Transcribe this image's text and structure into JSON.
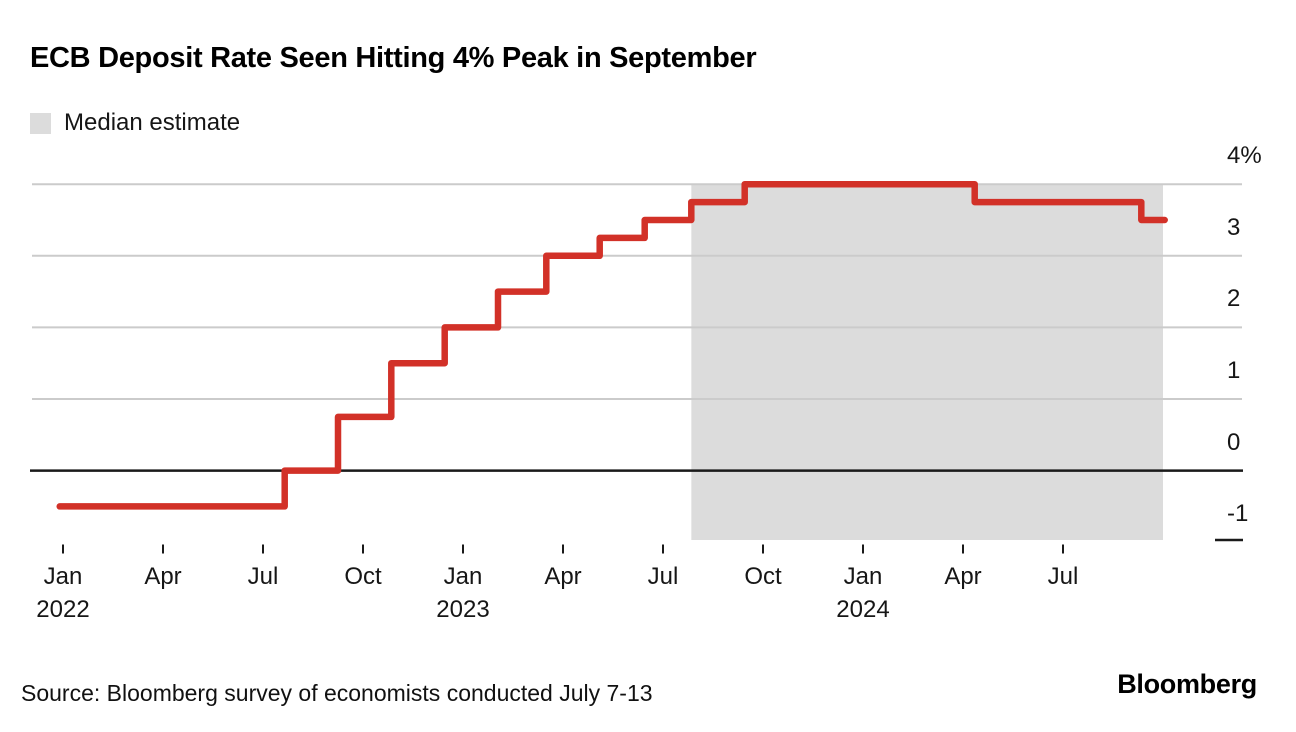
{
  "header": {
    "title": "ECB Deposit Rate Seen Hitting 4% Peak in September"
  },
  "legend": {
    "label": "Median estimate",
    "swatch_color": "#dcdcdc"
  },
  "chart_data": {
    "type": "line",
    "step": true,
    "title": "ECB Deposit Rate Seen Hitting 4% Peak in September",
    "unit": "%",
    "grid": true,
    "ylim": [
      -1,
      4
    ],
    "colors": {
      "line": "#d23128",
      "band": "#dcdcdc",
      "gridline": "#cbcbcb",
      "axis": "#1a1a1a"
    },
    "y_axis": {
      "side": "right",
      "ticks": [
        {
          "label": "4%",
          "value": 4
        },
        {
          "label": "3",
          "value": 3
        },
        {
          "label": "2",
          "value": 2
        },
        {
          "label": "1",
          "value": 1
        },
        {
          "label": "0",
          "value": 0
        },
        {
          "label": "-1",
          "value": -1
        }
      ]
    },
    "x_axis": {
      "ticks": [
        {
          "m": 0,
          "month": "Jan",
          "year": "2022"
        },
        {
          "m": 3,
          "month": "Apr"
        },
        {
          "m": 6,
          "month": "Jul"
        },
        {
          "m": 9,
          "month": "Oct"
        },
        {
          "m": 12,
          "month": "Jan",
          "year": "2023"
        },
        {
          "m": 15,
          "month": "Apr"
        },
        {
          "m": 18,
          "month": "Jul"
        },
        {
          "m": 21,
          "month": "Oct"
        },
        {
          "m": 24,
          "month": "Jan",
          "year": "2024"
        },
        {
          "m": 27,
          "month": "Apr"
        },
        {
          "m": 30,
          "month": "Jul"
        }
      ]
    },
    "band": {
      "label": "Median estimate",
      "color": "#dcdcdc",
      "from": "Aug 2023",
      "to": "Oct 2024",
      "from_m": 18.85,
      "to_m": 33.0,
      "top_value": 4
    },
    "series": [
      {
        "name": "ECB deposit facility rate with median economist estimate",
        "color": "#d23128",
        "end_m": 33.05,
        "points": [
          {
            "date": "Jan 2022",
            "m": -0.1,
            "value": -0.5,
            "segment": "actual"
          },
          {
            "date": "Jul 2022",
            "m": 6.65,
            "value": 0.0,
            "segment": "actual"
          },
          {
            "date": "Sep 2022",
            "m": 8.25,
            "value": 0.75,
            "segment": "actual"
          },
          {
            "date": "Nov 2022",
            "m": 9.85,
            "value": 1.5,
            "segment": "actual"
          },
          {
            "date": "Dec 2022",
            "m": 11.45,
            "value": 2.0,
            "segment": "actual"
          },
          {
            "date": "Feb 2023",
            "m": 13.05,
            "value": 2.5,
            "segment": "actual"
          },
          {
            "date": "Mar 2023",
            "m": 14.5,
            "value": 3.0,
            "segment": "actual"
          },
          {
            "date": "May 2023",
            "m": 16.1,
            "value": 3.25,
            "segment": "actual"
          },
          {
            "date": "Jun 2023",
            "m": 17.45,
            "value": 3.5,
            "segment": "actual"
          },
          {
            "date": "Jul 2023",
            "m": 18.85,
            "value": 3.75,
            "segment": "median estimate"
          },
          {
            "date": "Sep 2023",
            "m": 20.45,
            "value": 4.0,
            "segment": "median estimate"
          },
          {
            "date": "Apr 2024",
            "m": 27.35,
            "value": 3.75,
            "segment": "median estimate"
          },
          {
            "date": "Sep 2024",
            "m": 32.35,
            "value": 3.5,
            "segment": "median estimate"
          }
        ]
      }
    ]
  },
  "footer": {
    "source": "Source: Bloomberg survey of economists conducted July 7-13",
    "brand": "Bloomberg"
  }
}
